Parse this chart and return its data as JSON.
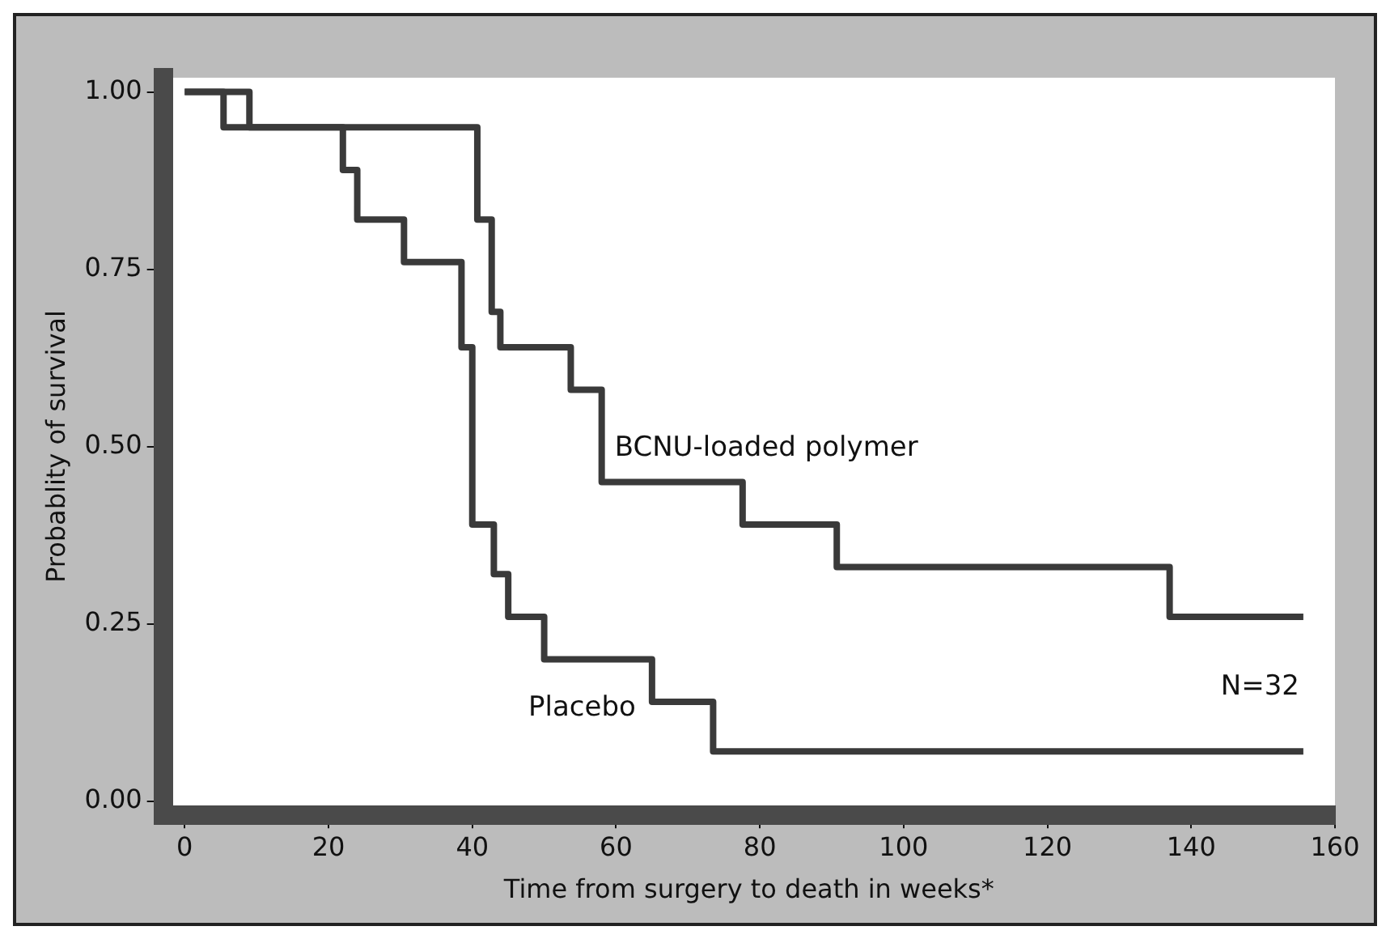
{
  "chart_data": {
    "type": "step",
    "xlabel": "Time from surgery to death in weeks*",
    "ylabel": "Probablity of survival",
    "series": [
      {
        "name": "BCNU-loaded polymer",
        "color": "#3a3a3a",
        "x": [
          0,
          9,
          40.7,
          42.7,
          43.9,
          53.7,
          58,
          77.6,
          90.7,
          137,
          155.6
        ],
        "values": [
          1,
          0.95,
          0.82,
          0.69,
          0.64,
          0.58,
          0.45,
          0.39,
          0.33,
          0.26,
          0.26
        ]
      },
      {
        "name": "Placebo",
        "color": "#3a3a3a",
        "x": [
          0,
          5.4,
          22,
          24,
          30.5,
          38.5,
          40,
          43,
          45,
          50,
          65,
          73.5,
          155.6
        ],
        "values": [
          1,
          0.95,
          0.89,
          0.82,
          0.76,
          0.64,
          0.39,
          0.32,
          0.26,
          0.2,
          0.14,
          0.07,
          0.07
        ]
      }
    ],
    "xlim": [
      -3,
      160
    ],
    "xticks": [
      0,
      20,
      40,
      60,
      80,
      100,
      120,
      140,
      160
    ],
    "ylim": [
      -0.02,
      1.02
    ],
    "yticks": [
      {
        "value": 0,
        "label": "0.00"
      },
      {
        "value": 0.25,
        "label": "0.25"
      },
      {
        "value": 0.5,
        "label": "0.50"
      },
      {
        "value": 0.75,
        "label": "0.75"
      },
      {
        "value": 1,
        "label": "1.00"
      }
    ],
    "annotations": [
      "N=32"
    ],
    "grid": false,
    "legend": false,
    "marker": "none",
    "line_style": "solid"
  }
}
